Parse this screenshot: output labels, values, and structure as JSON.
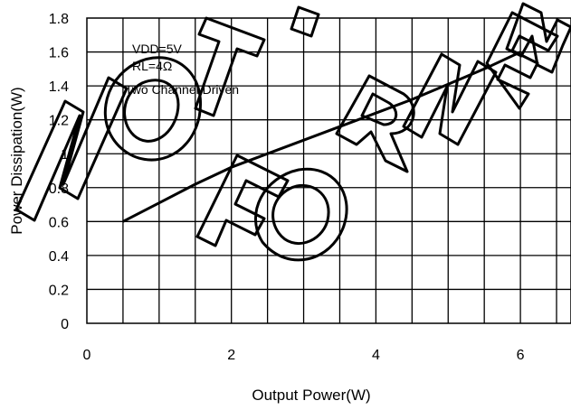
{
  "chart_data": {
    "type": "line",
    "title": "",
    "xlabel": "Output Power(W)",
    "ylabel": "Power Dissipation(W)",
    "xlim": [
      0,
      6.7
    ],
    "ylim": [
      0,
      1.8
    ],
    "x_ticks": [
      0,
      2,
      4,
      6
    ],
    "y_ticks": [
      0,
      0.2,
      0.4,
      0.6,
      0.8,
      1,
      1.2,
      1.4,
      1.6,
      1.8
    ],
    "x_tick_labels": [
      "0",
      "2",
      "4",
      "6"
    ],
    "y_tick_labels": [
      "0",
      "0.2",
      "0.4",
      "0.6",
      "0.8",
      "1",
      "1.2",
      "1.4",
      "1.6",
      "1.8"
    ],
    "grid": true,
    "legend": "none",
    "annotations": [
      "VDD=5V",
      "RL=4Ω",
      "Two Channel Driven"
    ],
    "series": [
      {
        "color": "#000000",
        "x": [
          0.5,
          1.0,
          1.5,
          2.0,
          2.5,
          3.0,
          3.5,
          4.0,
          4.5,
          5.0,
          5.5,
          6.0
        ],
        "y": [
          0.6,
          0.71,
          0.82,
          0.92,
          1.0,
          1.08,
          1.16,
          1.24,
          1.32,
          1.41,
          1.5,
          1.6
        ]
      }
    ]
  },
  "watermark": {
    "text": "NOT FOR NEW DESIGN"
  }
}
